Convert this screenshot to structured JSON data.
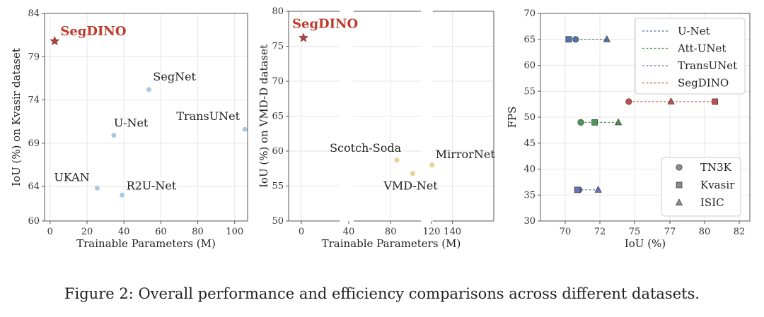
{
  "caption": "Figure 2: Overall performance and efficiency comparisons across different datasets.",
  "colors": {
    "accent_red": "#c0392b",
    "blue_point": "#a9cbe6",
    "orange_point": "#f3cf93",
    "grid": "#e6e6e6"
  },
  "chart_data": [
    {
      "type": "scatter",
      "xlabel": "Trainable Parameters (M)",
      "ylabel": "IoU (%) on Kvasir dataset",
      "xlim": [
        -3,
        107
      ],
      "ylim": [
        60,
        84
      ],
      "xticks": [
        0,
        20,
        40,
        60,
        80,
        100
      ],
      "yticks": [
        60,
        64,
        69,
        74,
        79,
        84
      ],
      "grid": true,
      "points": [
        {
          "label": "SegDINO",
          "x": 2.5,
          "y": 80.8,
          "marker": "star",
          "highlight": true
        },
        {
          "label": "SegNet",
          "x": 53.5,
          "y": 75.2,
          "marker": "circle"
        },
        {
          "label": "U-Net",
          "x": 34.5,
          "y": 69.9,
          "marker": "circle"
        },
        {
          "label": "TransUNet",
          "x": 105.5,
          "y": 70.6,
          "marker": "circle"
        },
        {
          "label": "UKAN",
          "x": 25.5,
          "y": 63.8,
          "marker": "circle"
        },
        {
          "label": "R2U-Net",
          "x": 39.0,
          "y": 63.0,
          "marker": "circle"
        }
      ]
    },
    {
      "type": "scatter",
      "xlabel": "Trainable Parameters (M)",
      "ylabel": "IoU (%) on VMD-D dataset",
      "xlim": [
        -15,
        163
      ],
      "ylim": [
        50,
        80
      ],
      "xticks": [
        0,
        40,
        80,
        120,
        140
      ],
      "yticks": [
        50,
        55,
        60,
        65,
        70,
        75,
        80
      ],
      "axis_break": true,
      "grid": true,
      "points": [
        {
          "label": "SegDINO",
          "x": 2.5,
          "y": 76.2,
          "marker": "star",
          "highlight": true
        },
        {
          "label": "Scotch-Soda",
          "x": 86.0,
          "y": 58.7,
          "marker": "circle"
        },
        {
          "label": "VMD-Net",
          "x": 102.0,
          "y": 56.8,
          "marker": "circle"
        },
        {
          "label": "MirrorNet",
          "x": 120.5,
          "y": 58.0,
          "marker": "circle"
        }
      ]
    },
    {
      "type": "scatter",
      "xlabel": "IoU (%)",
      "ylabel": "FPS",
      "xlim": [
        68,
        82
      ],
      "ylim": [
        30,
        70
      ],
      "xticks": [
        70,
        72,
        75,
        77,
        80,
        82
      ],
      "yticks": [
        30,
        35,
        40,
        45,
        50,
        55,
        60,
        65,
        70
      ],
      "grid": true,
      "legend_models": [
        "U-Net",
        "Att-UNet",
        "TransUNet",
        "SegDINO"
      ],
      "legend_datasets": [
        "TN3K",
        "Kvasir",
        "ISIC"
      ],
      "series": [
        {
          "name": "U-Net",
          "color": "#4f76a8",
          "fps": 65,
          "points": [
            {
              "dataset": "TN3K",
              "iou": 70.6
            },
            {
              "dataset": "Kvasir",
              "iou": 70.2
            },
            {
              "dataset": "ISIC",
              "iou": 72.6
            }
          ]
        },
        {
          "name": "Att-UNet",
          "color": "#4b9a59",
          "fps": 49,
          "points": [
            {
              "dataset": "TN3K",
              "iou": 70.9
            },
            {
              "dataset": "Kvasir",
              "iou": 71.7
            },
            {
              "dataset": "ISIC",
              "iou": 73.6
            }
          ]
        },
        {
          "name": "TransUNet",
          "color": "#6b74b8",
          "fps": 36,
          "points": [
            {
              "dataset": "TN3K",
              "iou": 70.8
            },
            {
              "dataset": "Kvasir",
              "iou": 70.7
            },
            {
              "dataset": "ISIC",
              "iou": 71.9
            }
          ]
        },
        {
          "name": "SegDINO",
          "color": "#c0504d",
          "fps": 53,
          "points": [
            {
              "dataset": "TN3K",
              "iou": 74.5
            },
            {
              "dataset": "Kvasir",
              "iou": 80.6
            },
            {
              "dataset": "ISIC",
              "iou": 77.1
            }
          ]
        }
      ]
    }
  ]
}
